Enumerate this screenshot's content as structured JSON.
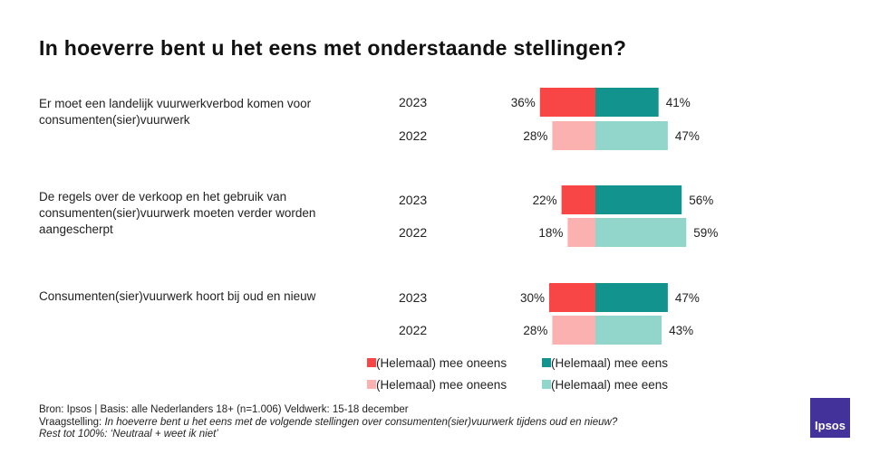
{
  "title": "In hoeverre bent u het eens met onderstaande stellingen?",
  "chart_data": {
    "type": "bar",
    "orientation": "horizontal-diverging",
    "groups": [
      {
        "statement": "Er moet een landelijk vuurwerkverbod komen voor consumenten(sier)vuurwerk",
        "rows": [
          {
            "year": "2023",
            "disagree": 36,
            "agree": 41
          },
          {
            "year": "2022",
            "disagree": 28,
            "agree": 47
          }
        ]
      },
      {
        "statement": "De regels over de verkoop en het gebruik van consumenten(sier)vuurwerk moeten verder worden aangescherpt",
        "rows": [
          {
            "year": "2023",
            "disagree": 22,
            "agree": 56
          },
          {
            "year": "2022",
            "disagree": 18,
            "agree": 59
          }
        ]
      },
      {
        "statement": "Consumenten(sier)vuurwerk hoort bij oud en nieuw",
        "rows": [
          {
            "year": "2023",
            "disagree": 30,
            "agree": 47
          },
          {
            "year": "2022",
            "disagree": 28,
            "agree": 43
          }
        ]
      }
    ],
    "legend": [
      {
        "label": "(Helemaal) mee oneens",
        "color": "#f84545"
      },
      {
        "label": "(Helemaal) mee eens",
        "color": "#13938d"
      },
      {
        "label": "(Helemaal) mee oneens",
        "color": "#fcb1b1"
      },
      {
        "label": "(Helemaal) mee eens",
        "color": "#92d5cb"
      }
    ],
    "colors": {
      "disagree_2023": "#f84545",
      "agree_2023": "#13938d",
      "disagree_2022": "#fcb1b1",
      "agree_2022": "#92d5cb"
    }
  },
  "footer": {
    "source": "Bron: Ipsos | Basis: alle Nederlanders  18+ (n=1.006) Veldwerk:  15-18  december",
    "question_label": "Vraagstelling: ",
    "question_text": "In hoeverre  bent u het eens met de volgende  stellingen over  consumenten(sier)vuurwerk  tijdens oud en nieuw?",
    "rest_note": "Rest tot 100%: ‘Neutraal  + weet ik niet’"
  },
  "logo": {
    "text": "Ipsos",
    "color": "#43329a"
  }
}
